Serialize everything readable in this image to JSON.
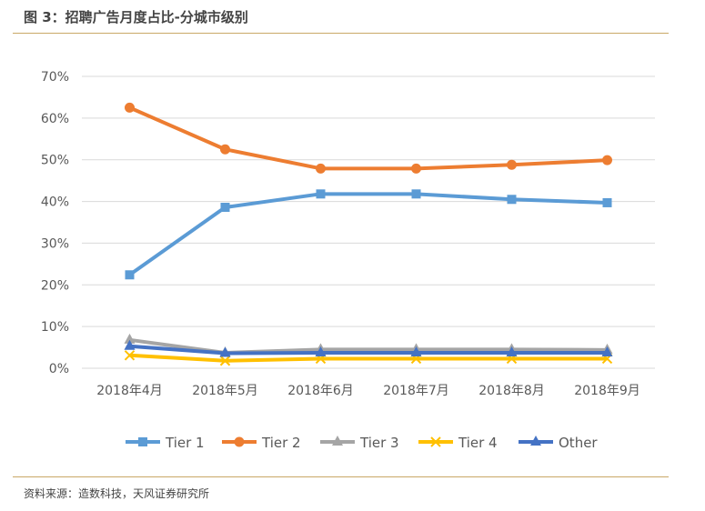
{
  "title": "图 3：招聘广告月度占比-分城市级别",
  "source": "资料来源：造数科技，天风证券研究所",
  "chart_data": {
    "type": "line",
    "title": "",
    "xlabel": "",
    "ylabel": "",
    "categories": [
      "2018年4月",
      "2018年5月",
      "2018年6月",
      "2018年7月",
      "2018年8月",
      "2018年9月"
    ],
    "ylim": [
      0,
      70
    ],
    "yticks": [
      0,
      10,
      20,
      30,
      40,
      50,
      60,
      70
    ],
    "ytick_labels": [
      "0%",
      "10%",
      "20%",
      "30%",
      "40%",
      "50%",
      "60%",
      "70%"
    ],
    "grid": "horizontal",
    "legend": "bottom",
    "series": [
      {
        "name": "Tier 1",
        "color": "#5b9bd5",
        "marker": "square",
        "values": [
          22.4,
          38.6,
          41.8,
          41.8,
          40.5,
          39.7
        ]
      },
      {
        "name": "Tier 2",
        "color": "#ed7d31",
        "marker": "circle",
        "values": [
          62.5,
          52.5,
          47.9,
          47.9,
          48.8,
          49.9
        ]
      },
      {
        "name": "Tier 3",
        "color": "#a5a5a5",
        "marker": "triangle",
        "values": [
          6.8,
          3.7,
          4.5,
          4.5,
          4.5,
          4.4
        ]
      },
      {
        "name": "Tier 4",
        "color": "#ffc000",
        "marker": "x",
        "values": [
          3.1,
          1.8,
          2.3,
          2.3,
          2.3,
          2.3
        ]
      },
      {
        "name": "Other",
        "color": "#4472c4",
        "marker": "triangle",
        "values": [
          5.3,
          3.6,
          3.7,
          3.7,
          3.7,
          3.7
        ]
      }
    ]
  }
}
